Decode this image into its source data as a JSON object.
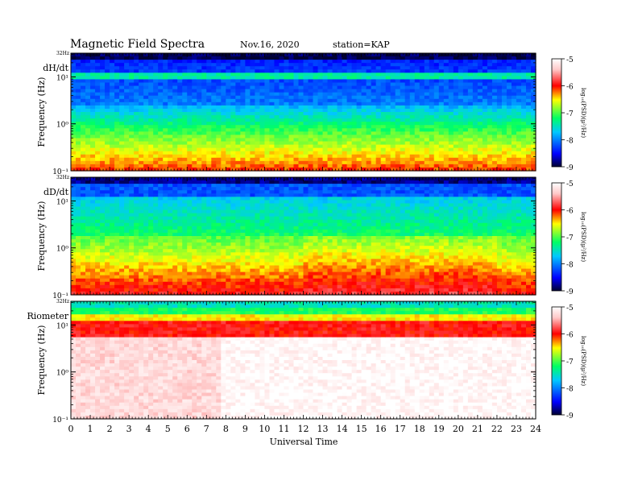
{
  "header": {
    "title": "Magnetic  Field  Spectra",
    "date": "Nov.16, 2020",
    "station": "station=KAP"
  },
  "colors": {
    "colormap": [
      "#000033",
      "#0000ff",
      "#00c8ff",
      "#00ff64",
      "#ffff00",
      "#ff0000",
      "#ffc8c8",
      "#ffffff"
    ]
  },
  "chart_data": {
    "type": "heatmap",
    "xlabel": "Universal Time",
    "x_ticks": [
      "0",
      "1",
      "2",
      "3",
      "4",
      "5",
      "6",
      "7",
      "8",
      "9",
      "10",
      "11",
      "12",
      "13",
      "14",
      "15",
      "16",
      "17",
      "18",
      "19",
      "20",
      "21",
      "22",
      "23",
      "24"
    ],
    "xlim": [
      0,
      24
    ],
    "panels": [
      {
        "label": "dH/dt",
        "ylabel": "Frequency  (Hz)",
        "top_label": "32Hz",
        "y_scale": "log",
        "ylim": [
          0.1,
          32
        ],
        "y_tick_labels": [
          "10¹",
          "10⁰",
          "10⁻¹"
        ],
        "y_tick_values": [
          10,
          1,
          0.1
        ],
        "colorbar": {
          "label": "log₁₀(PSD)(μ²/Hz)",
          "ticks": [
            "-5",
            "-6",
            "-7",
            "-8",
            "-9"
          ],
          "range": [
            -9,
            -5
          ]
        }
      },
      {
        "label": "dD/dt",
        "ylabel": "Frequency  (Hz)",
        "top_label": "32Hz",
        "y_scale": "log",
        "ylim": [
          0.1,
          32
        ],
        "y_tick_labels": [
          "10¹",
          "10⁰",
          "10⁻¹"
        ],
        "y_tick_values": [
          10,
          1,
          0.1
        ],
        "colorbar": {
          "label": "log₁₀(PSD)(μ²/Hz)",
          "ticks": [
            "-5",
            "-6",
            "-7",
            "-8",
            "-9"
          ],
          "range": [
            -9,
            -5
          ]
        }
      },
      {
        "label": "Riometer",
        "ylabel": "Frequency  (Hz)",
        "top_label": "32Hz",
        "y_scale": "log",
        "ylim": [
          0.1,
          32
        ],
        "y_tick_labels": [
          "10¹",
          "10⁰",
          "10⁻¹"
        ],
        "y_tick_values": [
          10,
          1,
          0.1
        ],
        "colorbar": {
          "label": "log₁₀(PSD)(μ²/Hz)",
          "ticks": [
            "-5",
            "-6",
            "-7",
            "-8",
            "-9"
          ],
          "range": [
            -9,
            -5
          ]
        }
      }
    ]
  }
}
